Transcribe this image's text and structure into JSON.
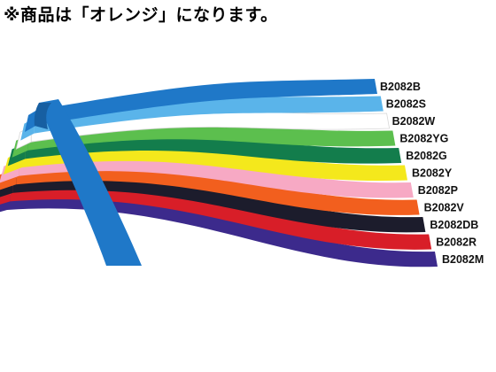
{
  "notice": "※商品は「オレンジ」になります。",
  "ribbons": [
    {
      "code": "B2082B",
      "color": "#1f78c8"
    },
    {
      "code": "B2082S",
      "color": "#5ab4ea"
    },
    {
      "code": "B2082W",
      "color": "#ffffff"
    },
    {
      "code": "B2082YG",
      "color": "#5cbf4e"
    },
    {
      "code": "B2082G",
      "color": "#137d4c"
    },
    {
      "code": "B2082Y",
      "color": "#f4e81c"
    },
    {
      "code": "B2082P",
      "color": "#f7a9c4"
    },
    {
      "code": "B2082V",
      "color": "#f25f1e"
    },
    {
      "code": "B2082DB",
      "color": "#1c1c2c"
    },
    {
      "code": "B2082R",
      "color": "#d81e28"
    },
    {
      "code": "B2082M",
      "color": "#3c2a8c"
    }
  ]
}
